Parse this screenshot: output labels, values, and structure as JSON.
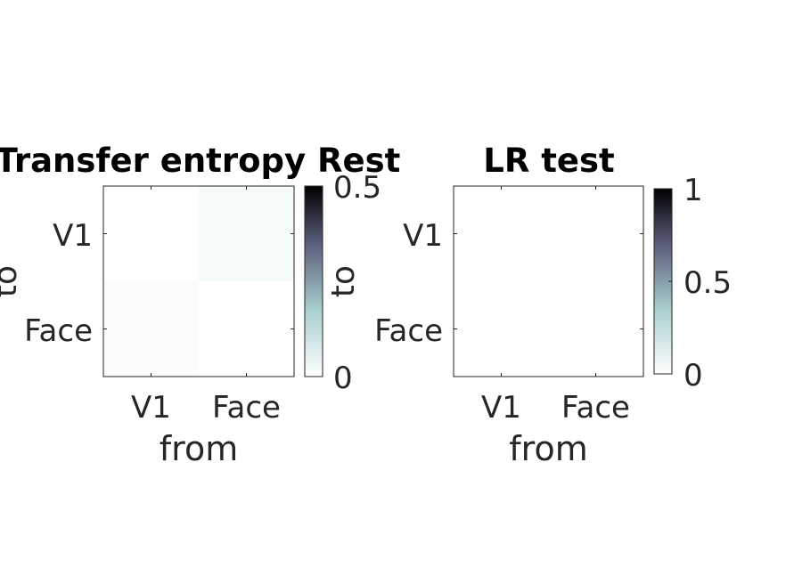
{
  "chart_data": [
    {
      "type": "heatmap",
      "title": "Transfer entropy Rest",
      "xlabel": "from",
      "ylabel": "to",
      "x_categories": [
        "V1",
        "Face"
      ],
      "y_categories": [
        "V1",
        "Face"
      ],
      "values": [
        [
          0.0,
          0.02
        ],
        [
          0.01,
          0.0
        ]
      ],
      "colorbar": {
        "range": [
          0,
          0.5
        ],
        "ticks": [
          "0",
          "0.5"
        ],
        "label": "to"
      },
      "colormap": "bone-reversed"
    },
    {
      "type": "heatmap",
      "title": "LR test",
      "xlabel": "from",
      "ylabel": "",
      "x_categories": [
        "V1",
        "Face"
      ],
      "y_categories": [
        "V1",
        "Face"
      ],
      "values": [
        [
          0,
          0
        ],
        [
          0,
          0
        ]
      ],
      "colorbar": {
        "range": [
          0,
          1
        ],
        "ticks": [
          "0",
          "0.5",
          "1"
        ]
      },
      "colormap": "bone-reversed"
    }
  ]
}
